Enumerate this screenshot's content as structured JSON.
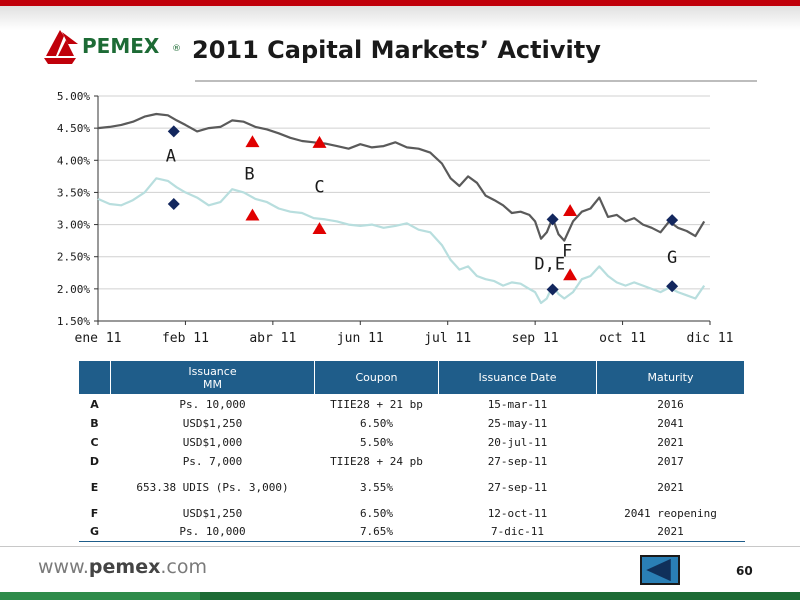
{
  "header": {
    "logo_text": "PEMEX",
    "logo_reg": "®",
    "title": "2011 Capital Markets’ Activity"
  },
  "colors": {
    "top_bar": "#c0000a",
    "logo_green": "#1d6b35",
    "logo_red": "#c0000a",
    "table_header": "#1f5d8a",
    "series_dark": "#5a5a5a",
    "series_light": "#b8dede",
    "marker_diamond": "#13275e",
    "marker_triangle": "#e00000"
  },
  "chart_data": {
    "type": "line",
    "title": "",
    "xlabel": "",
    "ylabel": "",
    "ylim": [
      1.5,
      5.0
    ],
    "y_ticks": [
      "1.50%",
      "2.00%",
      "2.50%",
      "3.00%",
      "3.50%",
      "4.00%",
      "4.50%",
      "5.00%"
    ],
    "x_ticks": [
      "ene 11",
      "feb 11",
      "abr 11",
      "jun 11",
      "jul 11",
      "sep 11",
      "oct 11",
      "dic 11"
    ],
    "grid": "horizontal",
    "series": [
      {
        "color": "#5a5a5a",
        "points": [
          [
            0,
            4.5
          ],
          [
            4,
            4.52
          ],
          [
            8,
            4.55
          ],
          [
            12,
            4.6
          ],
          [
            16,
            4.68
          ],
          [
            20,
            4.72
          ],
          [
            24,
            4.7
          ],
          [
            27,
            4.62
          ],
          [
            30,
            4.55
          ],
          [
            34,
            4.45
          ],
          [
            38,
            4.5
          ],
          [
            42,
            4.52
          ],
          [
            46,
            4.62
          ],
          [
            50,
            4.6
          ],
          [
            54,
            4.52
          ],
          [
            58,
            4.48
          ],
          [
            62,
            4.42
          ],
          [
            66,
            4.35
          ],
          [
            70,
            4.3
          ],
          [
            74,
            4.28
          ],
          [
            78,
            4.26
          ],
          [
            82,
            4.22
          ],
          [
            86,
            4.18
          ],
          [
            90,
            4.25
          ],
          [
            94,
            4.2
          ],
          [
            98,
            4.22
          ],
          [
            102,
            4.28
          ],
          [
            106,
            4.2
          ],
          [
            110,
            4.18
          ],
          [
            114,
            4.12
          ],
          [
            118,
            3.95
          ],
          [
            121,
            3.72
          ],
          [
            124,
            3.6
          ],
          [
            127,
            3.75
          ],
          [
            130,
            3.65
          ],
          [
            133,
            3.45
          ],
          [
            136,
            3.38
          ],
          [
            139,
            3.3
          ],
          [
            142,
            3.18
          ],
          [
            145,
            3.2
          ],
          [
            148,
            3.15
          ],
          [
            150,
            3.05
          ],
          [
            152,
            2.78
          ],
          [
            154,
            2.88
          ],
          [
            156,
            3.1
          ],
          [
            158,
            2.85
          ],
          [
            160,
            2.75
          ],
          [
            163,
            3.05
          ],
          [
            166,
            3.2
          ],
          [
            169,
            3.25
          ],
          [
            172,
            3.42
          ],
          [
            175,
            3.12
          ],
          [
            178,
            3.15
          ],
          [
            181,
            3.05
          ],
          [
            184,
            3.1
          ],
          [
            187,
            3.0
          ],
          [
            190,
            2.95
          ],
          [
            193,
            2.88
          ],
          [
            196,
            3.05
          ],
          [
            199,
            2.95
          ],
          [
            202,
            2.9
          ],
          [
            205,
            2.82
          ],
          [
            208,
            3.05
          ]
        ]
      },
      {
        "color": "#b8dede",
        "points": [
          [
            0,
            3.4
          ],
          [
            4,
            3.32
          ],
          [
            8,
            3.3
          ],
          [
            12,
            3.38
          ],
          [
            16,
            3.5
          ],
          [
            20,
            3.72
          ],
          [
            24,
            3.68
          ],
          [
            27,
            3.58
          ],
          [
            30,
            3.5
          ],
          [
            34,
            3.42
          ],
          [
            38,
            3.3
          ],
          [
            42,
            3.35
          ],
          [
            46,
            3.55
          ],
          [
            50,
            3.5
          ],
          [
            54,
            3.4
          ],
          [
            58,
            3.35
          ],
          [
            62,
            3.25
          ],
          [
            66,
            3.2
          ],
          [
            70,
            3.18
          ],
          [
            74,
            3.1
          ],
          [
            78,
            3.08
          ],
          [
            82,
            3.05
          ],
          [
            86,
            3.0
          ],
          [
            90,
            2.98
          ],
          [
            94,
            3.0
          ],
          [
            98,
            2.95
          ],
          [
            102,
            2.98
          ],
          [
            106,
            3.02
          ],
          [
            110,
            2.92
          ],
          [
            114,
            2.88
          ],
          [
            118,
            2.68
          ],
          [
            121,
            2.45
          ],
          [
            124,
            2.3
          ],
          [
            127,
            2.35
          ],
          [
            130,
            2.2
          ],
          [
            133,
            2.15
          ],
          [
            136,
            2.12
          ],
          [
            139,
            2.05
          ],
          [
            142,
            2.1
          ],
          [
            145,
            2.08
          ],
          [
            148,
            2.0
          ],
          [
            150,
            1.95
          ],
          [
            152,
            1.78
          ],
          [
            154,
            1.85
          ],
          [
            156,
            2.05
          ],
          [
            158,
            1.92
          ],
          [
            160,
            1.85
          ],
          [
            163,
            1.95
          ],
          [
            166,
            2.15
          ],
          [
            169,
            2.2
          ],
          [
            172,
            2.35
          ],
          [
            175,
            2.2
          ],
          [
            178,
            2.1
          ],
          [
            181,
            2.05
          ],
          [
            184,
            2.1
          ],
          [
            187,
            2.05
          ],
          [
            190,
            2.0
          ],
          [
            193,
            1.95
          ],
          [
            196,
            2.02
          ],
          [
            199,
            1.95
          ],
          [
            202,
            1.9
          ],
          [
            205,
            1.85
          ],
          [
            208,
            2.05
          ]
        ]
      }
    ],
    "markers": [
      {
        "shape": "diamond",
        "x": 26,
        "y": 4.45
      },
      {
        "shape": "diamond",
        "x": 26,
        "y": 3.32
      },
      {
        "shape": "triangle",
        "x": 53,
        "y": 4.28
      },
      {
        "shape": "triangle",
        "x": 53,
        "y": 3.14
      },
      {
        "shape": "triangle",
        "x": 76,
        "y": 4.27
      },
      {
        "shape": "triangle",
        "x": 76,
        "y": 2.93
      },
      {
        "shape": "diamond",
        "x": 156,
        "y": 3.08
      },
      {
        "shape": "diamond",
        "x": 156,
        "y": 1.99
      },
      {
        "shape": "triangle",
        "x": 162,
        "y": 3.21
      },
      {
        "shape": "triangle",
        "x": 162,
        "y": 2.21
      },
      {
        "shape": "diamond",
        "x": 197,
        "y": 3.07
      },
      {
        "shape": "diamond",
        "x": 197,
        "y": 2.04
      }
    ],
    "annotations": [
      {
        "text": "A",
        "x": 25,
        "y": 3.98
      },
      {
        "text": "B",
        "x": 52,
        "y": 3.7
      },
      {
        "text": "C",
        "x": 76,
        "y": 3.5
      },
      {
        "text": "D,E",
        "x": 155,
        "y": 2.3
      },
      {
        "text": "F",
        "x": 161,
        "y": 2.5
      },
      {
        "text": "G",
        "x": 197,
        "y": 2.4
      }
    ]
  },
  "table": {
    "headers": [
      "",
      "Issuance\nMM",
      "Coupon",
      "Issuance Date",
      "Maturity"
    ],
    "rows": [
      {
        "label": "A",
        "issuance": "Ps.  10,000",
        "coupon": "TIIE28 + 21 bp",
        "date": "15-mar-11",
        "maturity": "2016"
      },
      {
        "label": "B",
        "issuance": "USD$1,250",
        "coupon": "6.50%",
        "date": "25-may-11",
        "maturity": "2041"
      },
      {
        "label": "C",
        "issuance": "USD$1,000",
        "coupon": "5.50%",
        "date": "20-jul-11",
        "maturity": "2021"
      },
      {
        "label": "D",
        "issuance": "Ps.  7,000",
        "coupon": "TIIE28 + 24 pb",
        "date": "27-sep-11",
        "maturity": "2017"
      },
      {
        "label": "E",
        "issuance": "653.38 UDIS (Ps.  3,000)",
        "coupon": "3.55%",
        "date": "27-sep-11",
        "maturity": "2021"
      },
      {
        "label": "F",
        "issuance": "USD$1,250",
        "coupon": "6.50%",
        "date": "12-oct-11",
        "maturity": "2041 reopening"
      },
      {
        "label": "G",
        "issuance": "Ps.  10,000",
        "coupon": "7.65%",
        "date": "7-dic-11",
        "maturity": "2021"
      }
    ]
  },
  "footer": {
    "website_prefix": "www.",
    "website_brand": "pemex",
    "website_suffix": ".com",
    "back_icon": "left-arrow-icon",
    "page_number": "60"
  }
}
